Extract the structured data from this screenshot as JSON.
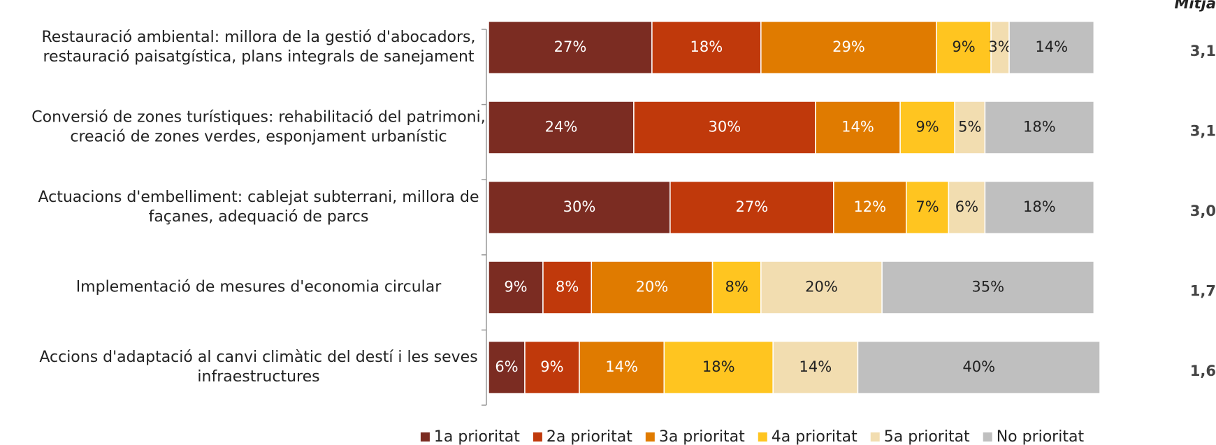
{
  "chart_data": {
    "type": "stacked-barh",
    "categories": [
      "Restauració ambiental: millora de la gestió d'abocadors, restauració paisatgística, plans integrals de sanejament",
      "Conversió de zones turístiques: rehabilitació del patrimoni, creació de zones verdes, esponjament urbanístic",
      "Actuacions d'embelliment: cablejat subterrani, millora de façanes, adequació de parcs",
      "Implementació de mesures d'economia circular",
      "Accions d'adaptació al canvi climàtic del destí i les seves infraestructures"
    ],
    "series": [
      {
        "name": "1a prioritat",
        "color": "#7b2c22",
        "values": [
          27,
          24,
          30,
          9,
          6
        ],
        "value_labels": [
          "27%",
          "24%",
          "30%",
          "9%",
          "6%"
        ]
      },
      {
        "name": "2a prioritat",
        "color": "#c0390b",
        "values": [
          18,
          30,
          27,
          8,
          9
        ],
        "value_labels": [
          "18%",
          "30%",
          "27%",
          "8%",
          "9%"
        ]
      },
      {
        "name": "3a prioritat",
        "color": "#e07b00",
        "values": [
          29,
          14,
          12,
          20,
          14
        ],
        "value_labels": [
          "29%",
          "14%",
          "12%",
          "20%",
          "14%"
        ]
      },
      {
        "name": "4a prioritat",
        "color": "#ffc520",
        "values": [
          9,
          9,
          7,
          8,
          18
        ],
        "value_labels": [
          "9%",
          "9%",
          "7%",
          "8%",
          "18%"
        ]
      },
      {
        "name": "5a prioritat",
        "color": "#f2ddb0",
        "values": [
          3,
          5,
          6,
          20,
          14
        ],
        "value_labels": [
          "3%",
          "5%",
          "6%",
          "20%",
          "14%"
        ]
      },
      {
        "name": "No prioritat",
        "color": "#bfbfbf",
        "values": [
          14,
          18,
          18,
          35,
          40
        ],
        "value_labels": [
          "14%",
          "18%",
          "18%",
          "35%",
          "40%"
        ]
      }
    ],
    "mean": {
      "title": "Mitja",
      "values": [
        3.1,
        3.1,
        3.0,
        1.7,
        1.6
      ],
      "value_labels": [
        "3,1",
        "3,1",
        "3,0",
        "1,7",
        "1,6"
      ]
    }
  }
}
